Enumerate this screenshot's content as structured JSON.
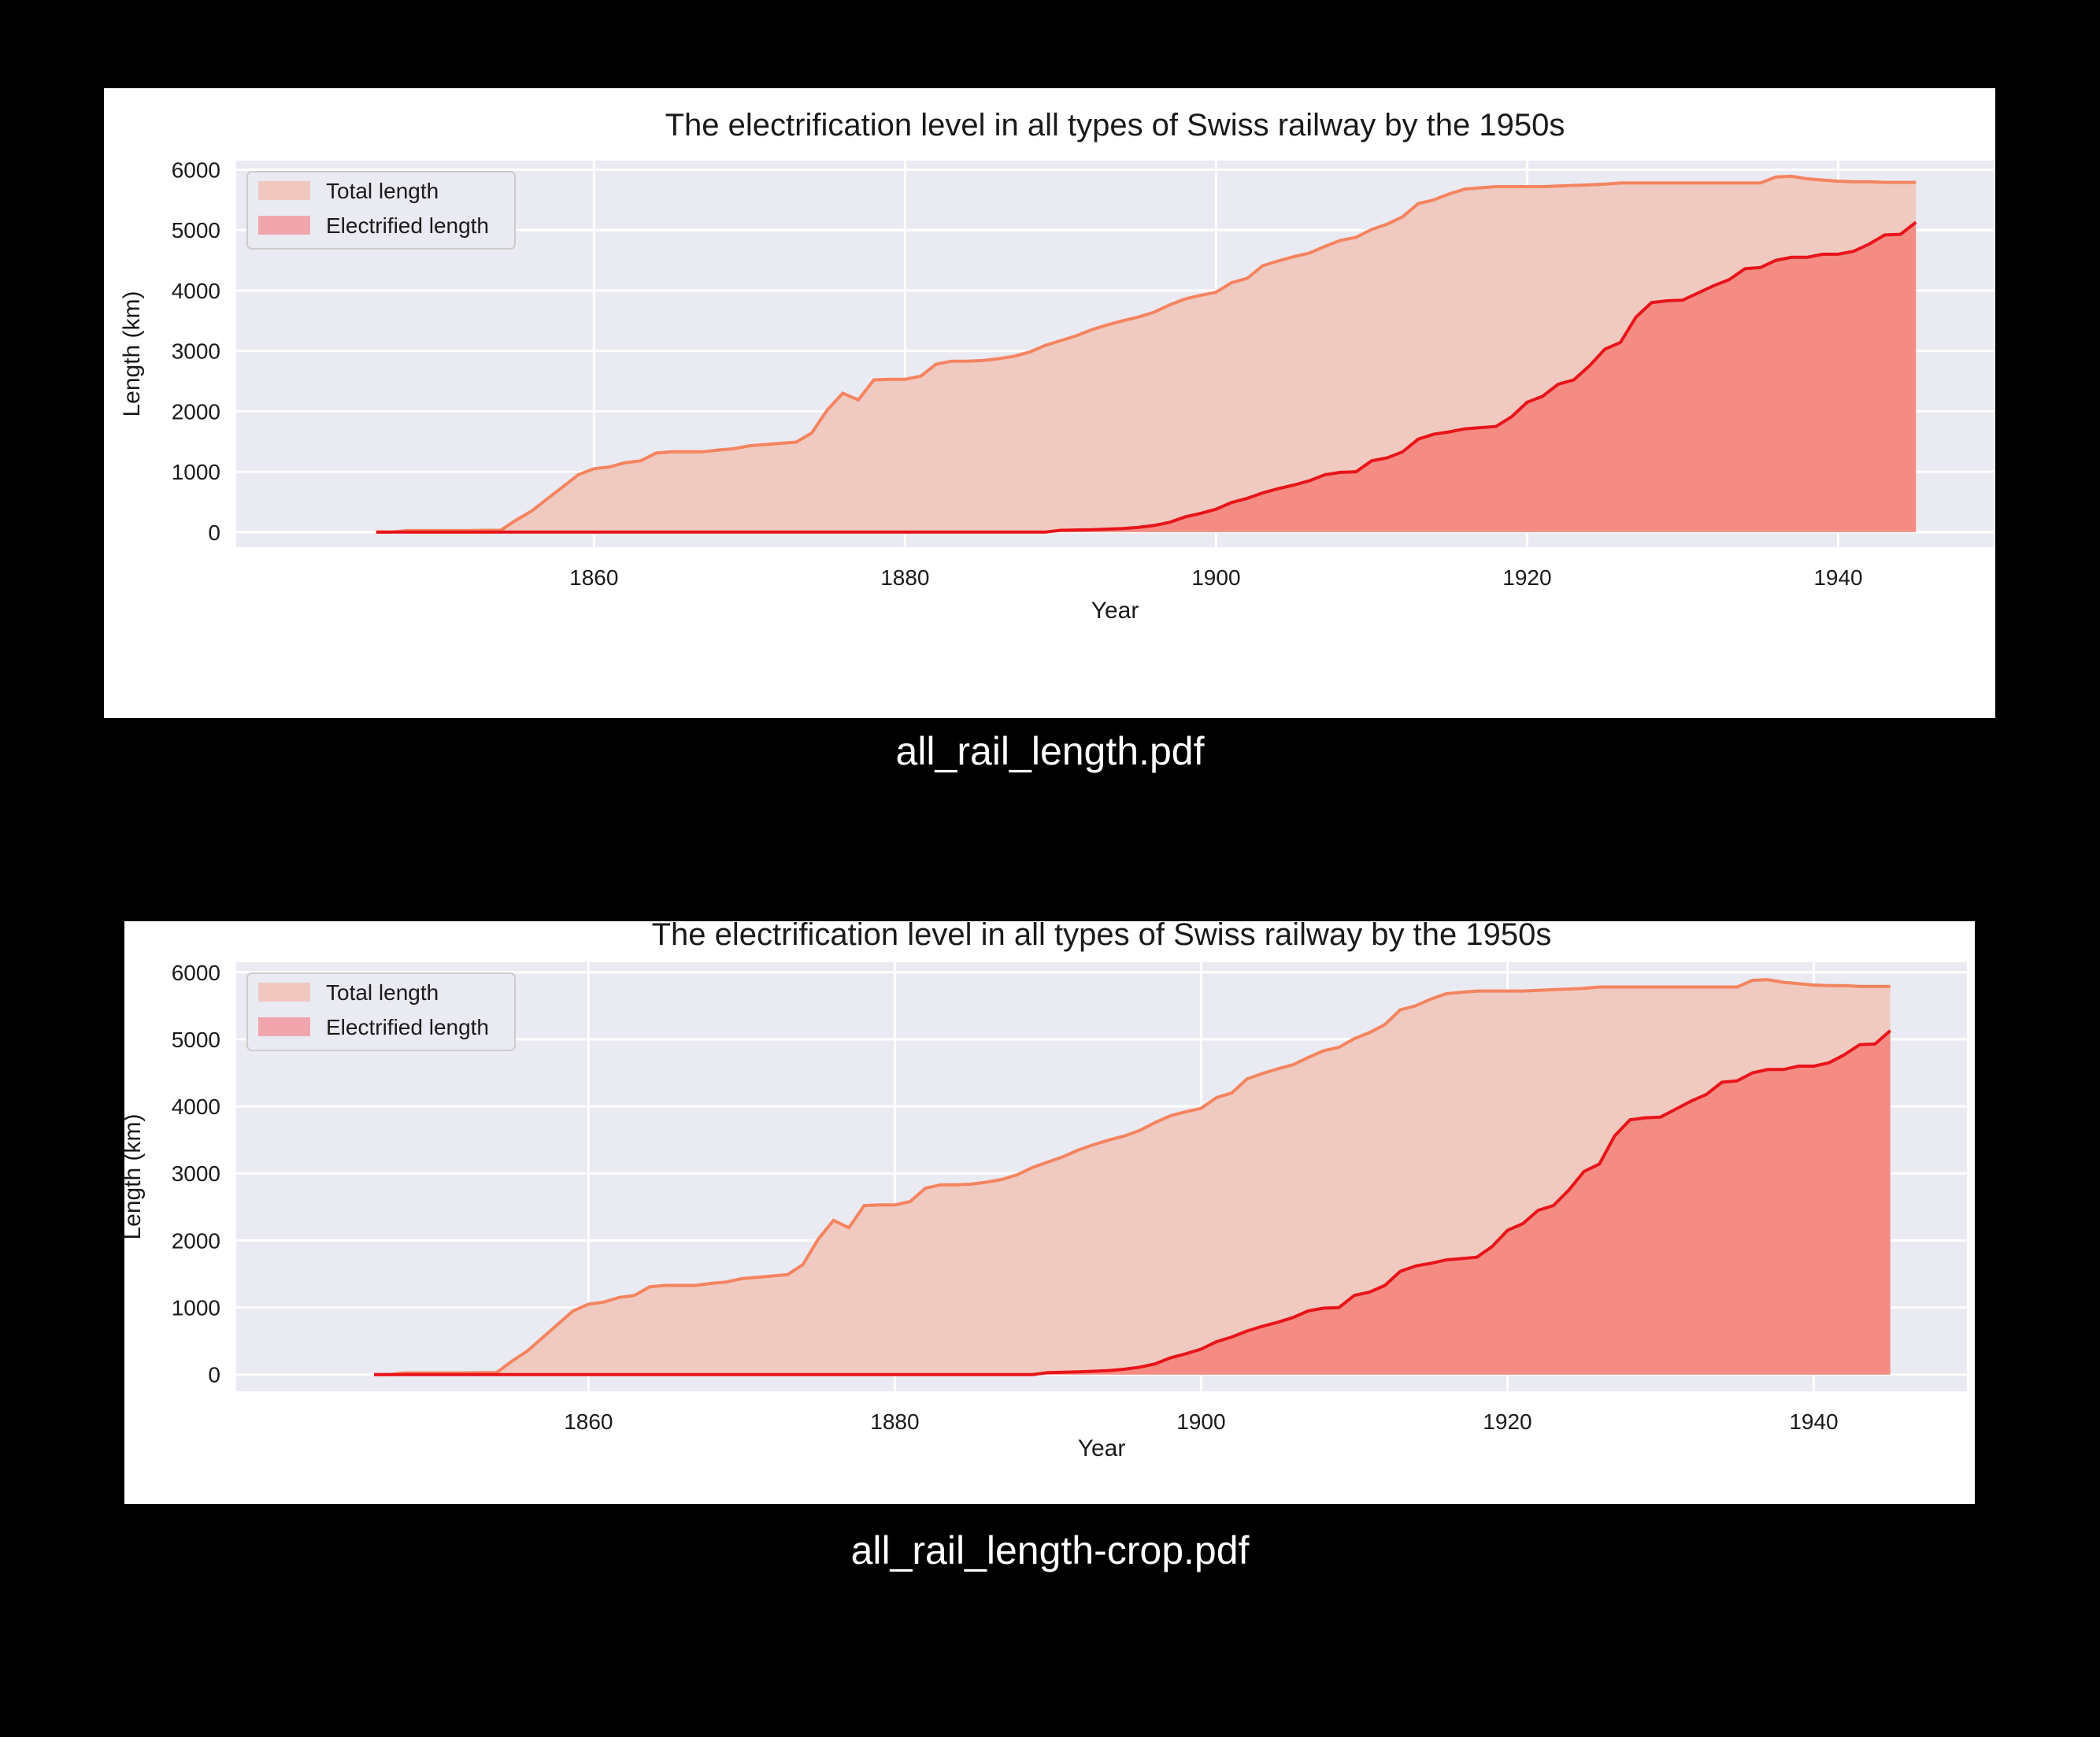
{
  "captions": [
    "all_rail_length.pdf",
    "all_rail_length-crop.pdf"
  ],
  "colors": {
    "background": "#000000",
    "panel": "#ffffff",
    "plot_bg": "#eaeaf2",
    "grid": "#ffffff",
    "total_fill": "#f0cac0",
    "total_line": "#f4845f",
    "elec_fill": "#f48c84",
    "elec_line": "#e8141a",
    "legend_total": "#f0c8c0",
    "legend_elec": "#f0a5ac"
  },
  "chart_data": [
    {
      "type": "area",
      "title": "The electrification level in all types of Swiss railway by the 1950s",
      "xlabel": "Year",
      "ylabel": "Length (km)",
      "xlim": [
        1837,
        1950
      ],
      "ylim": [
        -250,
        6150
      ],
      "xticks": [
        1860,
        1880,
        1900,
        1920,
        1940
      ],
      "yticks": [
        0,
        1000,
        2000,
        3000,
        4000,
        5000,
        6000
      ],
      "grid": true,
      "legend_position": "top-left",
      "x": [
        1846,
        1847,
        1848,
        1849,
        1850,
        1851,
        1852,
        1853,
        1854,
        1855,
        1856,
        1857,
        1858,
        1859,
        1860,
        1861,
        1862,
        1863,
        1864,
        1865,
        1866,
        1867,
        1868,
        1869,
        1870,
        1871,
        1872,
        1873,
        1874,
        1875,
        1876,
        1877,
        1878,
        1879,
        1880,
        1881,
        1882,
        1883,
        1884,
        1885,
        1886,
        1887,
        1888,
        1889,
        1890,
        1891,
        1892,
        1893,
        1894,
        1895,
        1896,
        1897,
        1898,
        1899,
        1900,
        1901,
        1902,
        1903,
        1904,
        1905,
        1906,
        1907,
        1908,
        1909,
        1910,
        1911,
        1912,
        1913,
        1914,
        1915,
        1916,
        1917,
        1918,
        1919,
        1920,
        1921,
        1922,
        1923,
        1924,
        1925,
        1926,
        1927,
        1928,
        1929,
        1930,
        1931,
        1932,
        1933,
        1934,
        1935,
        1936,
        1937,
        1938,
        1939,
        1940,
        1941,
        1942,
        1943,
        1944,
        1945
      ],
      "series": [
        {
          "name": "Total length",
          "values": [
            0,
            0,
            25,
            25,
            25,
            25,
            25,
            30,
            30,
            200,
            350,
            550,
            750,
            950,
            1050,
            1080,
            1150,
            1180,
            1310,
            1330,
            1330,
            1330,
            1360,
            1380,
            1430,
            1450,
            1470,
            1490,
            1640,
            2020,
            2300,
            2190,
            2520,
            2530,
            2530,
            2580,
            2780,
            2830,
            2830,
            2840,
            2870,
            2910,
            2980,
            3090,
            3170,
            3250,
            3350,
            3430,
            3500,
            3560,
            3640,
            3760,
            3860,
            3920,
            3970,
            4130,
            4200,
            4410,
            4490,
            4560,
            4620,
            4730,
            4830,
            4880,
            5010,
            5100,
            5220,
            5440,
            5500,
            5600,
            5680,
            5700,
            5720,
            5720,
            5720,
            5720,
            5730,
            5740,
            5750,
            5760,
            5780,
            5780,
            5780,
            5780,
            5780,
            5780,
            5780,
            5780,
            5780,
            5780,
            5880,
            5890,
            5850,
            5830,
            5810,
            5800,
            5800,
            5790,
            5790,
            5790
          ]
        },
        {
          "name": "Electrified length",
          "values": [
            0,
            0,
            0,
            0,
            0,
            0,
            0,
            0,
            0,
            0,
            0,
            0,
            0,
            0,
            0,
            0,
            0,
            0,
            0,
            0,
            0,
            0,
            0,
            0,
            0,
            0,
            0,
            0,
            0,
            0,
            0,
            0,
            0,
            0,
            0,
            0,
            0,
            0,
            0,
            0,
            0,
            0,
            0,
            0,
            30,
            35,
            40,
            50,
            60,
            80,
            110,
            160,
            250,
            310,
            380,
            490,
            560,
            650,
            720,
            780,
            850,
            950,
            990,
            1000,
            1180,
            1230,
            1330,
            1540,
            1620,
            1660,
            1710,
            1730,
            1750,
            1910,
            2150,
            2250,
            2450,
            2520,
            2750,
            3030,
            3140,
            3560,
            3800,
            3830,
            3840,
            3960,
            4080,
            4180,
            4360,
            4380,
            4500,
            4550,
            4550,
            4600,
            4600,
            4650,
            4770,
            4920,
            4930,
            5130
          ]
        }
      ]
    },
    {
      "type": "area",
      "title": "The electrification level in all types of Swiss railway by the 1950s",
      "xlabel": "Year",
      "ylabel": "Length (km)",
      "xlim": [
        1837,
        1950
      ],
      "ylim": [
        -250,
        6150
      ],
      "xticks": [
        1860,
        1880,
        1900,
        1920,
        1940
      ],
      "yticks": [
        0,
        1000,
        2000,
        3000,
        4000,
        5000,
        6000
      ],
      "grid": true,
      "legend_position": "top-left",
      "same_as_first": true
    }
  ]
}
